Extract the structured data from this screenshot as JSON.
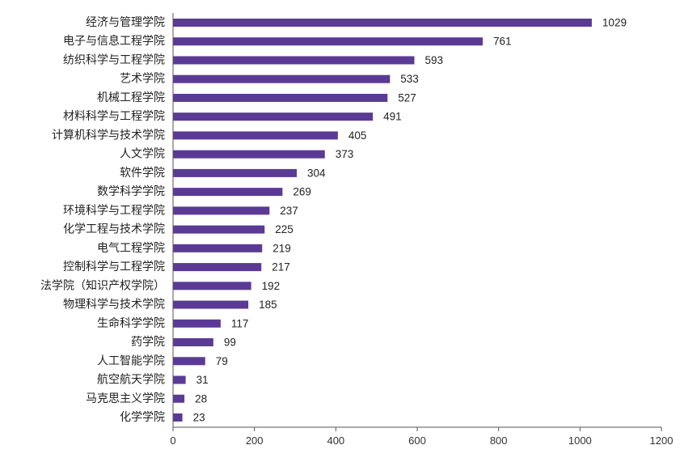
{
  "chart_data": {
    "type": "bar",
    "orientation": "horizontal",
    "title": "",
    "xlabel": "",
    "ylabel": "",
    "categories": [
      "经济与管理学院",
      "电子与信息工程学院",
      "纺织科学与工程学院",
      "艺术学院",
      "机械工程学院",
      "材料科学与工程学院",
      "计算机科学与技术学院",
      "人文学院",
      "软件学院",
      "数学科学学院",
      "环境科学与工程学院",
      "化学工程与技术学院",
      "电气工程学院",
      "控制科学与工程学院",
      "法学院（知识产权学院）",
      "物理科学与技术学院",
      "生命科学学院",
      "药学院",
      "人工智能学院",
      "航空航天学院",
      "马克思主义学院",
      "化学学院"
    ],
    "values": [
      1029,
      761,
      593,
      533,
      527,
      491,
      405,
      373,
      304,
      269,
      237,
      225,
      219,
      217,
      192,
      185,
      117,
      99,
      79,
      31,
      28,
      23
    ],
    "xlim": [
      0,
      1200
    ],
    "xticks": [
      0,
      200,
      400,
      600,
      800,
      1000,
      1200
    ],
    "bar_color": "#5b3a96",
    "grid": false,
    "legend": "none"
  }
}
